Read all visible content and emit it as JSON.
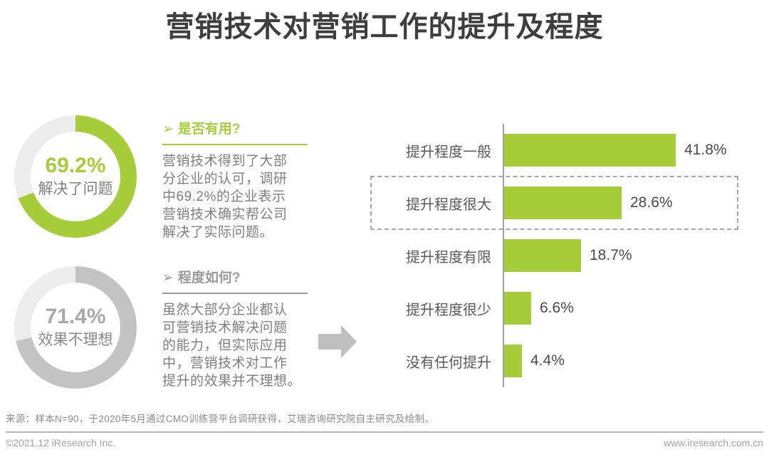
{
  "title": "营销技术对营销工作的提升及程度",
  "colors": {
    "accent_green": "#a5cd39",
    "donut_gray": "#c3c3c3",
    "donut_track": "#ececec",
    "text_dark": "#3e3e3e",
    "text_gray": "#7f7f7f"
  },
  "donuts": [
    {
      "value": 69.2,
      "value_label": "69.2%",
      "caption": "解决了问题",
      "segment_color": "#a5cd39",
      "track_color": "#ececec",
      "value_color": "#a5cd39",
      "caption_color": "#7f7f7f"
    },
    {
      "value": 71.4,
      "value_label": "71.4%",
      "caption": "效果不理想",
      "segment_color": "#c3c3c3",
      "track_color": "#ececec",
      "value_color": "#a9a9a9",
      "caption_color": "#8a8a8a"
    }
  ],
  "notes": [
    {
      "arrow": "➢",
      "heading": "是否有用?",
      "accent": "#a5cd39",
      "body": "营销技术得到了大部\n分企业的认可，调研\n中69.2%的企业表示\n营销技术确实帮公司\n解决了实际问题。"
    },
    {
      "arrow": "➢",
      "heading": "程度如何?",
      "accent": "#9b9b9b",
      "body": "虽然大部分企业都认\n可营销技术解决问题\n的能力，但实际应用\n中，营销技术对工作\n提升的效果并不理想。"
    }
  ],
  "chart_data": {
    "type": "bar",
    "orientation": "horizontal",
    "title": "",
    "xlabel": "",
    "ylabel": "",
    "categories": [
      "提升程度一般",
      "提升程度很大",
      "提升程度有限",
      "提升程度很少",
      "没有任何提升"
    ],
    "values": [
      41.8,
      28.6,
      18.7,
      6.6,
      4.4
    ],
    "value_labels": [
      "41.8%",
      "28.6%",
      "18.7%",
      "6.6%",
      "4.4%"
    ],
    "bar_color": "#a5cd39",
    "xlim": [
      0,
      45
    ],
    "grid": false,
    "legend": false,
    "highlight_index": 1,
    "highlight_style": "dashed-box"
  },
  "source": "来源：样本N=90，于2020年5月通过CMO训练营平台调研获得，艾瑞咨询研究院自主研究及绘制。",
  "footer": {
    "left": "©2021.12 iResearch Inc.",
    "right": "www.iresearch.com.cn"
  }
}
